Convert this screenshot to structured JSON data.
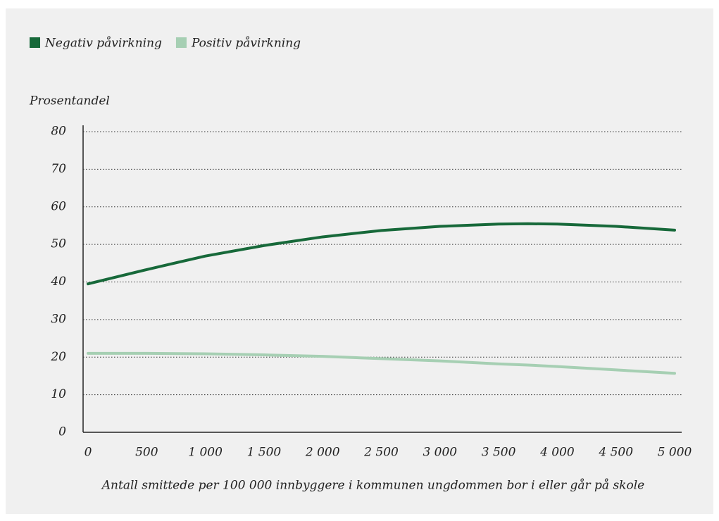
{
  "chart_data": {
    "type": "line",
    "y_label": "Prosentandel",
    "x_label": "Antall smittede per 100 000 innbyggere i kommunen ungdommen bor i eller går på skole",
    "x": [
      0,
      500,
      1000,
      1500,
      2000,
      2500,
      3000,
      3500,
      3750,
      4000,
      4500,
      5000
    ],
    "series": [
      {
        "name": "Negativ påvirkning",
        "color": "#17693a",
        "values": [
          39.5,
          43.3,
          46.9,
          49.7,
          52,
          53.7,
          54.8,
          55.4,
          55.5,
          55.4,
          54.8,
          53.8
        ]
      },
      {
        "name": "Positiv påvirkning",
        "color": "#a6cfb3",
        "values": [
          21,
          21,
          20.9,
          20.6,
          20.2,
          19.6,
          19,
          18.2,
          17.9,
          17.5,
          16.6,
          15.7
        ]
      }
    ],
    "xlim": [
      0,
      5000
    ],
    "xticks": [
      0,
      500,
      {
        "value": 1000,
        "label": "1 000"
      },
      {
        "value": 1500,
        "label": "1 500"
      },
      {
        "value": 2000,
        "label": "2 000"
      },
      {
        "value": 2500,
        "label": "2 500"
      },
      {
        "value": 3000,
        "label": "3 000"
      },
      {
        "value": 3500,
        "label": "3 500"
      },
      {
        "value": 4000,
        "label": "4 000"
      },
      {
        "value": 4500,
        "label": "4 500"
      },
      {
        "value": 5000,
        "label": "5 000"
      }
    ],
    "ylim": [
      0,
      80
    ],
    "yticks": [
      0,
      10,
      20,
      30,
      40,
      50,
      60,
      70,
      80
    ],
    "grid": true,
    "legend": "top-left"
  }
}
